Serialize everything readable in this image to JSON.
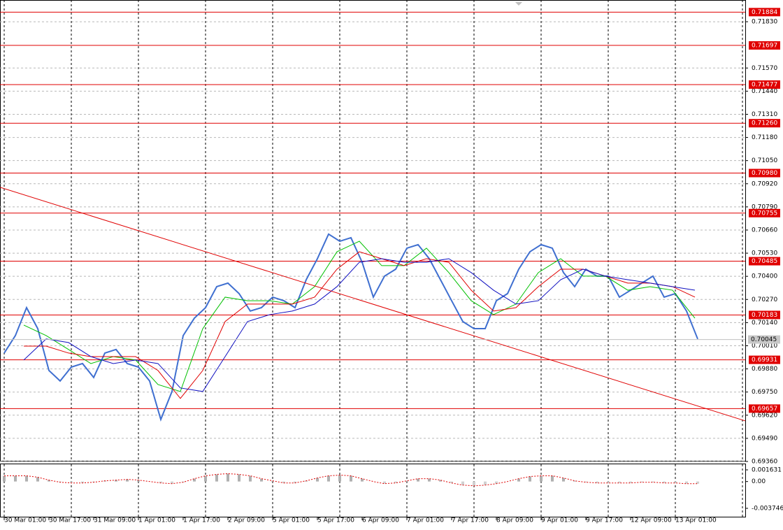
{
  "chart_data": {
    "type": "line",
    "xlim": [
      -1.5,
      265
    ],
    "ylim": [
      0.6936,
      0.71952
    ],
    "yticks": [
      {
        "value": 0.7183,
        "label": "0.71830"
      },
      {
        "value": 0.7157,
        "label": "0.71570"
      },
      {
        "value": 0.7144,
        "label": "0.71440"
      },
      {
        "value": 0.7131,
        "label": "0.71310"
      },
      {
        "value": 0.7118,
        "label": "0.71180"
      },
      {
        "value": 0.7105,
        "label": "0.71050"
      },
      {
        "value": 0.7092,
        "label": "0.70920"
      },
      {
        "value": 0.7079,
        "label": "0.70790"
      },
      {
        "value": 0.7066,
        "label": "0.70660"
      },
      {
        "value": 0.7053,
        "label": "0.70530"
      },
      {
        "value": 0.704,
        "label": "0.70400"
      },
      {
        "value": 0.7027,
        "label": "0.70270"
      },
      {
        "value": 0.7014,
        "label": "0.70140"
      },
      {
        "value": 0.7001,
        "label": "0.70010"
      },
      {
        "value": 0.6988,
        "label": "0.69880"
      },
      {
        "value": 0.6975,
        "label": "0.69750"
      },
      {
        "value": 0.6962,
        "label": "0.69620"
      },
      {
        "value": 0.6949,
        "label": "0.69490"
      },
      {
        "value": 0.6936,
        "label": "0.69360"
      }
    ],
    "xticks": [
      {
        "value": 0,
        "label": "30 Mar 01:00"
      },
      {
        "value": 16,
        "label": "30 Mar 17:00"
      },
      {
        "value": 32,
        "label": "31 Mar 09:00"
      },
      {
        "value": 48,
        "label": "1 Apr 01:00"
      },
      {
        "value": 64,
        "label": "1 Apr 17:00"
      },
      {
        "value": 80,
        "label": "2 Apr 09:00"
      },
      {
        "value": 96,
        "label": "5 Apr 01:00"
      },
      {
        "value": 112,
        "label": "5 Apr 17:00"
      },
      {
        "value": 128,
        "label": "6 Apr 09:00"
      },
      {
        "value": 144,
        "label": "7 Apr 01:00"
      },
      {
        "value": 160,
        "label": "7 Apr 17:00"
      },
      {
        "value": 176,
        "label": "8 Apr 09:00"
      },
      {
        "value": 192,
        "label": "9 Apr 01:00"
      },
      {
        "value": 208,
        "label": "9 Apr 17:00"
      },
      {
        "value": 224,
        "label": "12 Apr 09:00"
      },
      {
        "value": 240,
        "label": "13 Apr 01:00"
      }
    ],
    "xgrid": [
      0,
      24,
      48,
      72,
      96,
      120,
      144,
      168,
      192,
      216,
      240,
      264
    ],
    "grid": true,
    "series": [
      {
        "color": "#3f6fd0",
        "width": 2,
        "x": [
          0,
          4,
          8,
          12,
          16,
          20,
          24,
          28,
          32,
          36,
          40,
          44,
          48,
          52,
          56,
          60,
          64,
          68,
          72,
          76,
          80,
          84,
          88,
          92,
          96,
          100,
          104,
          108,
          112,
          116,
          120,
          124,
          128,
          132,
          136,
          140,
          144,
          148,
          152,
          156,
          160,
          164,
          168,
          172,
          176,
          180,
          184,
          188,
          192,
          196,
          200,
          204,
          208,
          212,
          216,
          220,
          224,
          228,
          232,
          236,
          240,
          244,
          248
        ],
        "values": [
          0.69969,
          0.70067,
          0.70224,
          0.70106,
          0.69871,
          0.69812,
          0.6989,
          0.6991,
          0.69832,
          0.69969,
          0.69989,
          0.6991,
          0.6989,
          0.69812,
          0.69596,
          0.69753,
          0.70067,
          0.70165,
          0.70224,
          0.70342,
          0.70362,
          0.70303,
          0.70205,
          0.70224,
          0.70283,
          0.70263,
          0.70224,
          0.70381,
          0.70499,
          0.70637,
          0.70597,
          0.70617,
          0.70479,
          0.70283,
          0.70401,
          0.7044,
          0.70558,
          0.70578,
          0.70499,
          0.70381,
          0.70263,
          0.70146,
          0.70106,
          0.70106,
          0.70263,
          0.70303,
          0.7044,
          0.70538,
          0.70578,
          0.70558,
          0.70421,
          0.70342,
          0.7044,
          0.70401,
          0.70401,
          0.70283,
          0.70322,
          0.70362,
          0.70401,
          0.70283,
          0.70303,
          0.70205,
          0.70048
        ]
      },
      {
        "color": "#00c000",
        "width": 1,
        "x": [
          7,
          15,
          23,
          31,
          39,
          47,
          55,
          63,
          71,
          79,
          87,
          95,
          103,
          111,
          119,
          127,
          135,
          143,
          151,
          159,
          167,
          175,
          183,
          191,
          199,
          207,
          215,
          223,
          231,
          239,
          247
        ],
        "values": [
          0.70126,
          0.70067,
          0.69989,
          0.6991,
          0.69949,
          0.6993,
          0.69792,
          0.69753,
          0.70106,
          0.70283,
          0.70263,
          0.70263,
          0.70244,
          0.70342,
          0.70538,
          0.70597,
          0.7046,
          0.7046,
          0.70558,
          0.70421,
          0.70263,
          0.70185,
          0.70244,
          0.70421,
          0.70499,
          0.70401,
          0.70401,
          0.70322,
          0.70342,
          0.70322,
          0.70165
        ]
      },
      {
        "color": "#e00000",
        "width": 1,
        "x": [
          7,
          15,
          23,
          31,
          39,
          47,
          55,
          63,
          71,
          79,
          87,
          95,
          103,
          111,
          119,
          127,
          135,
          143,
          151,
          159,
          167,
          175,
          183,
          191,
          199,
          207,
          215,
          223,
          231,
          239,
          247
        ],
        "values": [
          0.70008,
          0.70008,
          0.69969,
          0.69949,
          0.69949,
          0.69949,
          0.69871,
          0.69714,
          0.69871,
          0.70146,
          0.70244,
          0.70244,
          0.70244,
          0.70283,
          0.7044,
          0.70538,
          0.70499,
          0.7046,
          0.70499,
          0.70479,
          0.70322,
          0.70205,
          0.70224,
          0.70342,
          0.7044,
          0.7044,
          0.70401,
          0.70362,
          0.70362,
          0.70342,
          0.70283
        ]
      },
      {
        "color": "#1010c0",
        "width": 1,
        "x": [
          7,
          15,
          23,
          31,
          39,
          47,
          55,
          63,
          71,
          79,
          87,
          95,
          103,
          111,
          119,
          127,
          135,
          143,
          151,
          159,
          167,
          175,
          183,
          191,
          199,
          207,
          215,
          223,
          231,
          239,
          247
        ],
        "values": [
          0.6993,
          0.70048,
          0.70028,
          0.69949,
          0.6991,
          0.6993,
          0.6991,
          0.69773,
          0.69753,
          0.69949,
          0.70146,
          0.70185,
          0.70205,
          0.70244,
          0.70342,
          0.70479,
          0.70499,
          0.70479,
          0.70479,
          0.70499,
          0.70421,
          0.70322,
          0.70244,
          0.70263,
          0.70381,
          0.7044,
          0.70401,
          0.70381,
          0.70362,
          0.70342,
          0.70322
        ]
      },
      {
        "color": "#e00000",
        "width": 1,
        "x": [
          -1.5,
          265
        ],
        "values": [
          0.709,
          0.69588
        ]
      }
    ],
    "levels": [
      0.71884,
      0.71697,
      0.71477,
      {
        "value": 0.7126,
        "label": "0.71260"
      },
      {
        "value": 0.7098,
        "label": "0.70980"
      },
      0.70755,
      0.70485,
      0.70183,
      0.69931,
      0.69657
    ],
    "level_color": "#e00000",
    "current_price": 0.70045,
    "oscillator": {
      "ylim": [
        -0.005017,
        0.002413
      ],
      "yticks": [
        0.001631,
        {
          "value": 0,
          "label": "0.00"
        },
        -0.003746
      ],
      "color": "#e00000",
      "x": [
        0,
        4,
        8,
        12,
        16,
        20,
        24,
        28,
        32,
        36,
        40,
        44,
        48,
        52,
        56,
        60,
        64,
        68,
        72,
        76,
        80,
        84,
        88,
        92,
        96,
        100,
        104,
        108,
        112,
        116,
        120,
        124,
        128,
        132,
        136,
        140,
        144,
        148,
        152,
        156,
        160,
        164,
        168,
        172,
        176,
        180,
        184,
        188,
        192,
        196,
        200,
        204,
        208,
        212,
        216,
        220,
        224,
        228,
        232,
        236,
        240,
        244,
        248
      ],
      "values": [
        0.0008,
        0.0008,
        0.0008,
        0.0006,
        0.0002,
        -0.0001,
        -0.0002,
        -0.0002,
        -0.0001,
        0.0001,
        0.0002,
        0.0003,
        0.0002,
        0,
        -0.0002,
        -0.0003,
        -0.0001,
        0.0004,
        0.0008,
        0.001,
        0.0011,
        0.001,
        0.0008,
        0.0004,
        0.0001,
        -0.0002,
        -0.0002,
        0.0001,
        0.0005,
        0.0008,
        0.0009,
        0.0008,
        0.0004,
        0,
        -0.0003,
        -0.0002,
        0.0001,
        0.0004,
        0.0004,
        0.0002,
        -0.0002,
        -0.0005,
        -0.0006,
        -0.0005,
        -0.0003,
        0,
        0.0004,
        0.0007,
        0.0008,
        0.0008,
        0.0005,
        0.0001,
        -0.0001,
        -0.0002,
        -0.0002,
        -0.0002,
        -0.0002,
        -0.0001,
        -0.0001,
        -0.0002,
        -0.0002,
        -0.0003,
        -0.0003
      ]
    }
  }
}
